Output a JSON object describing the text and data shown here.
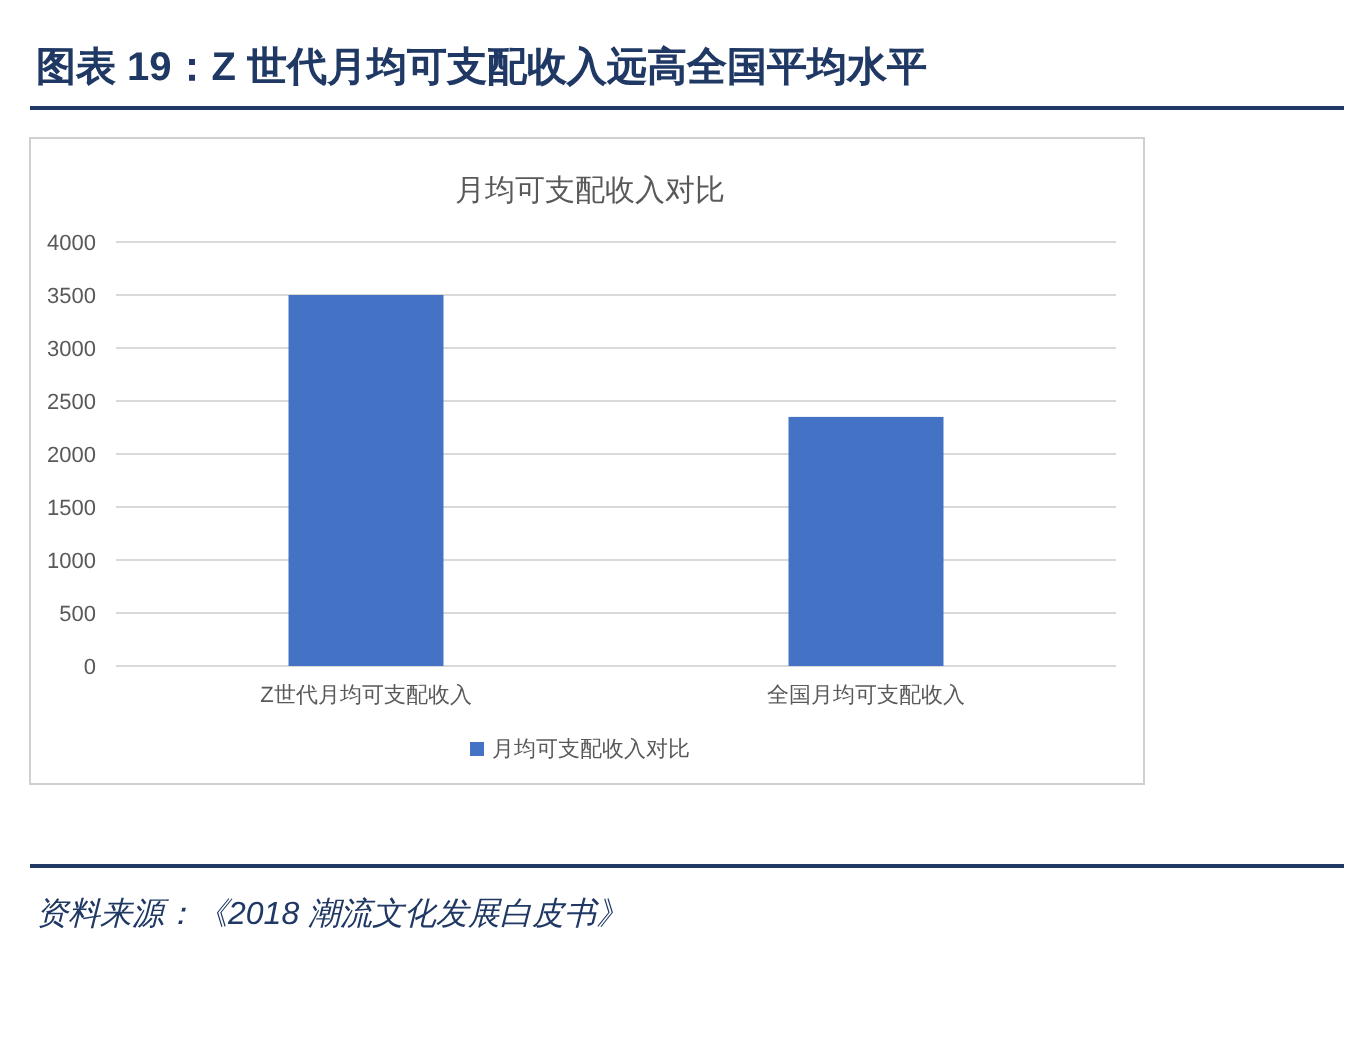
{
  "chart_data": {
    "type": "bar",
    "title": "图表 19：Z 世代月均可支配收入远高全国平均水平",
    "subtitle": "月均可支配收入对比",
    "categories": [
      "Z世代月均可支配收入",
      "全国月均可支配收入"
    ],
    "series": [
      {
        "name": "月均可支配收入对比",
        "color": "#4472c4",
        "values": [
          3500,
          2350
        ]
      }
    ],
    "ylim": [
      0,
      4000
    ],
    "yticks": [
      0,
      500,
      1000,
      1500,
      2000,
      2500,
      3000,
      3500,
      4000
    ],
    "grid": "y",
    "legend": "bottom",
    "annotations": [
      "资料来源：《2018 潮流文化发展白皮书》"
    ]
  }
}
